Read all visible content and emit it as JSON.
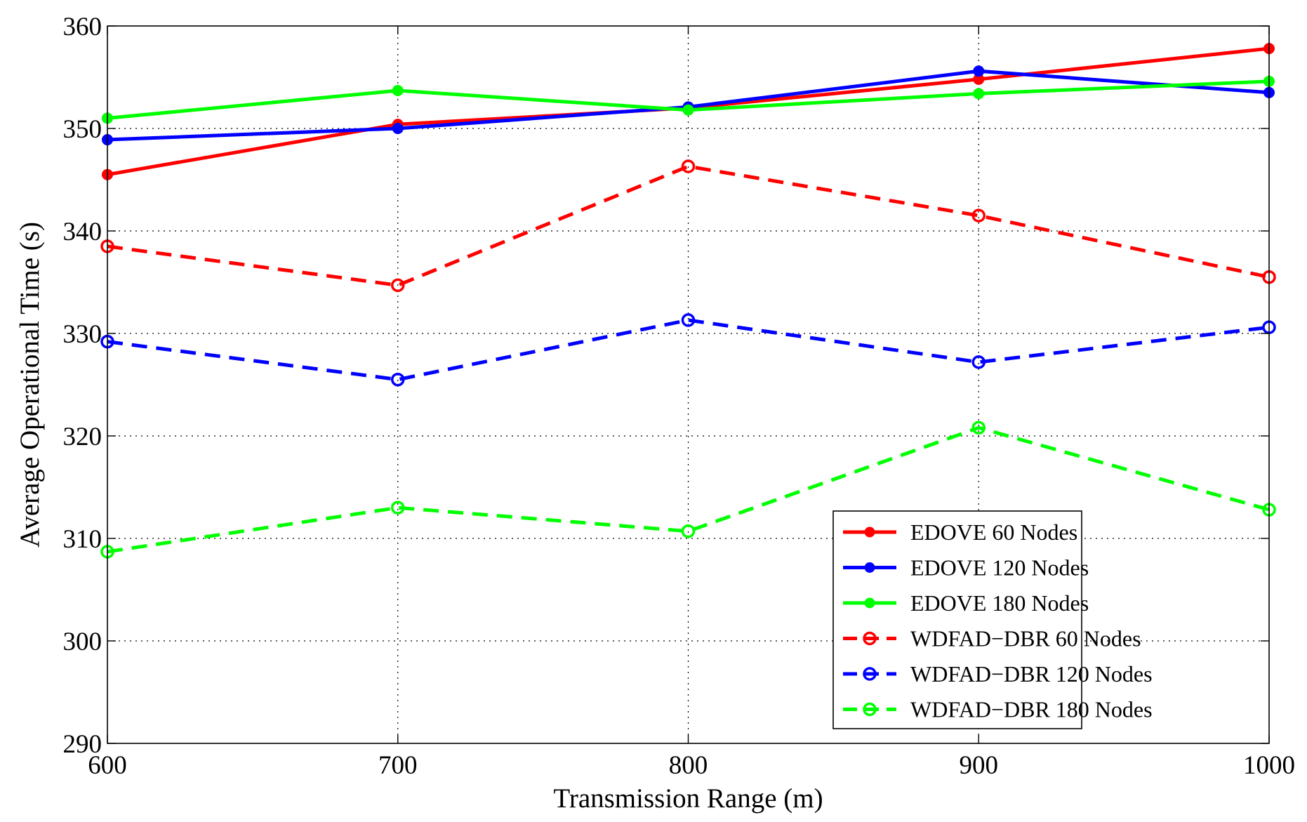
{
  "chart_data": {
    "type": "line",
    "title": "",
    "xlabel": "Transmission Range (m)",
    "ylabel": "Average Operational Time (s)",
    "x": [
      600,
      700,
      800,
      900,
      1000
    ],
    "xlim": [
      600,
      1000
    ],
    "ylim": [
      290,
      360
    ],
    "xticks": [
      600,
      700,
      800,
      900,
      1000
    ],
    "yticks": [
      290,
      300,
      310,
      320,
      330,
      340,
      350,
      360
    ],
    "grid": true,
    "legend_position": "bottom-right",
    "series": [
      {
        "name": "EDOVE 60 Nodes",
        "color": "#ff0000",
        "line": "solid",
        "marker": "filled-circle",
        "values": [
          345.5,
          350.4,
          352.0,
          354.8,
          357.8
        ]
      },
      {
        "name": "EDOVE 120 Nodes",
        "color": "#0000ff",
        "line": "solid",
        "marker": "filled-circle",
        "values": [
          348.9,
          350.0,
          352.1,
          355.6,
          353.5
        ]
      },
      {
        "name": "EDOVE 180 Nodes",
        "color": "#00ff00",
        "line": "solid",
        "marker": "filled-circle",
        "values": [
          351.0,
          353.7,
          351.8,
          353.4,
          354.6
        ]
      },
      {
        "name": "WDFAD−DBR 60 Nodes",
        "color": "#ff0000",
        "line": "dashed",
        "marker": "open-circle",
        "values": [
          338.5,
          334.7,
          346.3,
          341.5,
          335.5
        ]
      },
      {
        "name": "WDFAD−DBR 120 Nodes",
        "color": "#0000ff",
        "line": "dashed",
        "marker": "open-circle",
        "values": [
          329.2,
          325.5,
          331.3,
          327.2,
          330.6
        ]
      },
      {
        "name": "WDFAD−DBR 180 Nodes",
        "color": "#00ff00",
        "line": "dashed",
        "marker": "open-circle",
        "values": [
          308.7,
          313.0,
          310.7,
          320.8,
          312.8
        ]
      }
    ]
  }
}
